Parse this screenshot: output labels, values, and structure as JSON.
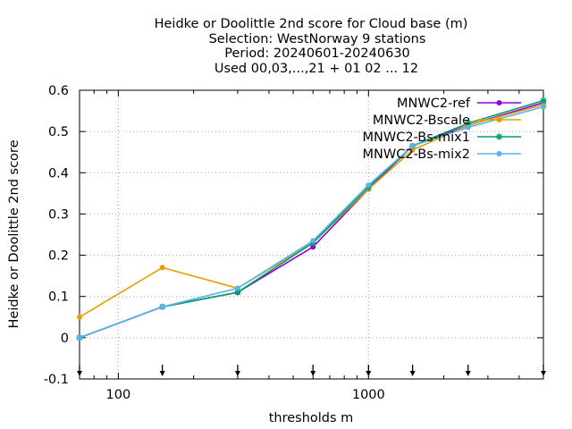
{
  "chart_data": {
    "type": "line",
    "title": [
      "Heidke or Doolittle 2nd score  for Cloud base (m)",
      "Selection: WestNorway      9 stations",
      "Period: 20240601-20240630",
      "Used 00,03,...,21 + 01 02 ... 12"
    ],
    "xlabel": "thresholds m",
    "ylabel": "Heidke or Doolittle 2nd score",
    "x_scale": "log",
    "xlim": [
      70,
      5000
    ],
    "ylim": [
      -0.1,
      0.6
    ],
    "x_ticks": [
      {
        "value": 100,
        "label": "100"
      },
      {
        "value": 1000,
        "label": "1000"
      }
    ],
    "y_ticks": [
      {
        "value": -0.1,
        "label": "-0.1"
      },
      {
        "value": 0,
        "label": "0"
      },
      {
        "value": 0.1,
        "label": "0.1"
      },
      {
        "value": 0.2,
        "label": "0.2"
      },
      {
        "value": 0.3,
        "label": "0.3"
      },
      {
        "value": 0.4,
        "label": "0.4"
      },
      {
        "value": 0.5,
        "label": "0.5"
      },
      {
        "value": 0.6,
        "label": "0.6"
      }
    ],
    "grid": true,
    "legend_position": "top-right",
    "threshold_markers": [
      70,
      150,
      300,
      600,
      1000,
      1500,
      2500,
      5000
    ],
    "series": [
      {
        "name": "MNWC2-ref",
        "color": "#9400d3",
        "marker": "filled-circle",
        "x": [
          70,
          150,
          300,
          600,
          1000,
          1500,
          2500,
          5000
        ],
        "y": [
          0.0,
          0.075,
          0.11,
          0.22,
          0.36,
          0.465,
          0.515,
          0.57
        ]
      },
      {
        "name": "MNWC2-Bscale",
        "color": "#e69f00",
        "marker": "filled-circle",
        "x": [
          70,
          150,
          300,
          600,
          1000,
          1500,
          2500,
          5000
        ],
        "y": [
          0.05,
          0.17,
          0.12,
          0.23,
          0.36,
          0.455,
          0.515,
          0.565
        ]
      },
      {
        "name": "MNWC2-Bs-mix1",
        "color": "#009e73",
        "marker": "star",
        "x": [
          70,
          150,
          300,
          600,
          1000,
          1500,
          2500,
          5000
        ],
        "y": [
          0.0,
          0.075,
          0.11,
          0.23,
          0.365,
          0.465,
          0.52,
          0.575
        ]
      },
      {
        "name": "MNWC2-Bs-mix2",
        "color": "#56b4e9",
        "marker": "filled-circle",
        "x": [
          70,
          150,
          300,
          600,
          1000,
          1500,
          2500,
          5000
        ],
        "y": [
          0.0,
          0.075,
          0.12,
          0.235,
          0.37,
          0.465,
          0.51,
          0.56
        ]
      }
    ]
  }
}
